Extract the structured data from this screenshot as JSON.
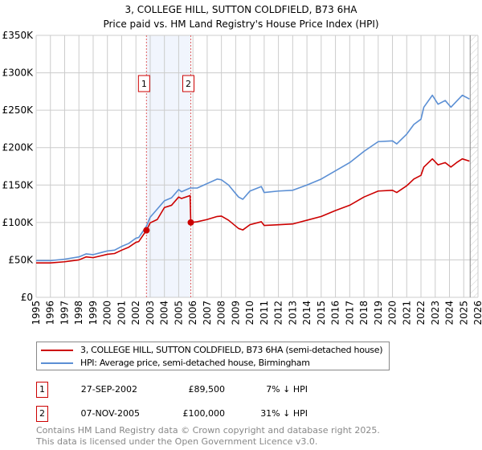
{
  "title": "3, COLLEGE HILL, SUTTON COLDFIELD, B73 6HA",
  "subtitle": "Price paid vs. HM Land Registry's House Price Index (HPI)",
  "chart_data": {
    "type": "line",
    "title": "3, COLLEGE HILL, SUTTON COLDFIELD, B73 6HA",
    "subtitle": "Price paid vs. HM Land Registry's House Price Index (HPI)",
    "xlim": [
      1995,
      2026
    ],
    "ylim": [
      0,
      350000
    ],
    "yticks": [
      0,
      50000,
      100000,
      150000,
      200000,
      250000,
      300000,
      350000
    ],
    "ytick_labels": [
      "£0",
      "£50K",
      "£100K",
      "£150K",
      "£200K",
      "£250K",
      "£300K",
      "£350K"
    ],
    "xticks": [
      1995,
      1996,
      1997,
      1998,
      1999,
      2000,
      2001,
      2002,
      2003,
      2004,
      2005,
      2006,
      2007,
      2008,
      2009,
      2010,
      2011,
      2012,
      2013,
      2014,
      2015,
      2016,
      2017,
      2018,
      2019,
      2020,
      2021,
      2022,
      2023,
      2024,
      2025,
      2026
    ],
    "grid": true,
    "series": [
      {
        "name": "3, COLLEGE HILL, SUTTON COLDFIELD, B73 6HA (semi-detached house)",
        "color": "#cc0000",
        "x": [
          1995,
          1996,
          1997,
          1998,
          1998.5,
          1999,
          2000,
          2000.5,
          2001,
          2001.5,
          2002,
          2002.2,
          2002.74,
          2003,
          2003.5,
          2004,
          2004.5,
          2005,
          2005.2,
          2005.8,
          2005.85,
          2006.3,
          2007,
          2007.7,
          2008,
          2008.5,
          2009.2,
          2009.5,
          2010,
          2010.8,
          2011,
          2012,
          2013,
          2014,
          2015,
          2016,
          2017,
          2018,
          2019,
          2020,
          2020.3,
          2021,
          2021.5,
          2022,
          2022.2,
          2022.8,
          2023.2,
          2023.7,
          2024.1,
          2024.5,
          2024.9,
          2025.4
        ],
        "y": [
          46,
          46,
          47.5,
          50,
          54,
          53,
          57.5,
          58.5,
          63,
          67,
          73.5,
          74.5,
          89.5,
          99.5,
          104,
          120,
          123,
          134,
          132,
          136,
          100,
          101,
          104,
          108,
          108.5,
          103,
          92,
          90,
          97,
          101,
          96,
          97,
          98,
          103,
          108,
          116,
          123,
          134,
          142,
          143,
          140,
          149,
          158,
          163,
          174,
          185,
          177,
          180,
          174,
          180,
          185,
          182
        ]
      },
      {
        "name": "HPI: Average price, semi-detached house, Birmingham",
        "color": "#5b8fd4",
        "x": [
          1995,
          1996,
          1997,
          1998,
          1998.5,
          1999,
          2000,
          2000.5,
          2001,
          2001.5,
          2002,
          2002.2,
          2002.74,
          2003,
          2003.5,
          2004,
          2004.5,
          2005,
          2005.2,
          2005.8,
          2006.3,
          2007,
          2007.7,
          2008,
          2008.5,
          2009.2,
          2009.5,
          2010,
          2010.8,
          2011,
          2012,
          2013,
          2014,
          2015,
          2016,
          2017,
          2018,
          2019,
          2020,
          2020.3,
          2021,
          2021.5,
          2022,
          2022.2,
          2022.8,
          2023.2,
          2023.7,
          2024.1,
          2024.5,
          2024.9,
          2025.4
        ],
        "y": [
          49,
          49,
          51,
          54,
          58,
          57,
          62,
          63,
          68,
          72,
          79,
          80,
          95,
          107,
          118,
          129,
          133,
          144,
          141,
          146,
          146,
          152,
          158,
          157,
          150,
          134,
          131,
          142,
          148,
          140,
          142,
          143,
          150,
          158,
          169,
          180,
          195,
          208,
          209,
          205,
          218,
          231,
          238,
          254,
          270,
          258,
          263,
          254,
          262,
          270,
          265
        ]
      }
    ],
    "y_units": "thousands GBP",
    "sales": [
      {
        "label": "1",
        "x": 2002.74,
        "value": 89500
      },
      {
        "label": "2",
        "x": 2005.85,
        "value": 100000
      }
    ],
    "data_end": 2025.45
  },
  "legend": [
    "3, COLLEGE HILL, SUTTON COLDFIELD, B73 6HA (semi-detached house)",
    "HPI: Average price, semi-detached house, Birmingham"
  ],
  "transactions": [
    {
      "num": "1",
      "date": "27-SEP-2002",
      "price": "£89,500",
      "hpi": "7% ↓ HPI"
    },
    {
      "num": "2",
      "date": "07-NOV-2005",
      "price": "£100,000",
      "hpi": "31% ↓ HPI"
    }
  ],
  "footer": [
    "Contains HM Land Registry data © Crown copyright and database right 2025.",
    "This data is licensed under the Open Government Licence v3.0."
  ]
}
